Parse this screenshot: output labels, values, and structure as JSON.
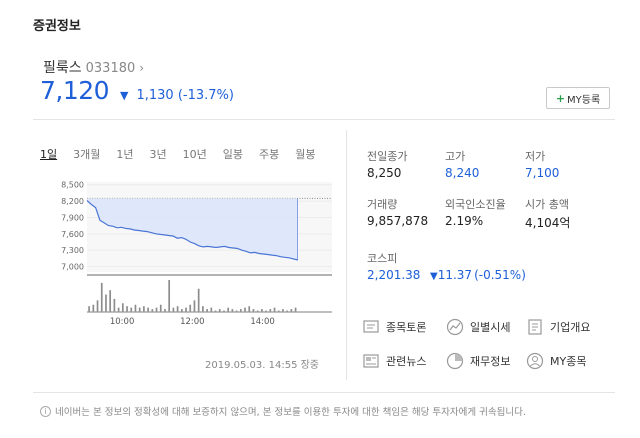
{
  "section_title": "증권정보",
  "stock": {
    "name": "필룩스",
    "code": "033180",
    "price": "7,120",
    "change_abs": "1,130",
    "change_pct": "(-13.7%)",
    "direction": "down",
    "my_button": "MY등록"
  },
  "tabs": [
    {
      "label": "1일",
      "active": true
    },
    {
      "label": "3개월",
      "active": false
    },
    {
      "label": "1년",
      "active": false
    },
    {
      "label": "3년",
      "active": false
    },
    {
      "label": "10년",
      "active": false
    },
    {
      "label": "일봉",
      "active": false
    },
    {
      "label": "주봉",
      "active": false
    },
    {
      "label": "월봉",
      "active": false
    }
  ],
  "chart_data": {
    "type": "line",
    "ylim": [
      6900,
      8550
    ],
    "yticks": [
      "8,500",
      "8,200",
      "7,900",
      "7,600",
      "7,300",
      "7,000"
    ],
    "xticks": [
      "10:00",
      "12:00",
      "14:00"
    ],
    "reference_value": 8250,
    "start_time": "09:00",
    "end_time": "15:30",
    "price_series": [
      8210,
      8140,
      8080,
      7850,
      7800,
      7750,
      7740,
      7710,
      7720,
      7700,
      7690,
      7670,
      7660,
      7650,
      7640,
      7620,
      7600,
      7590,
      7580,
      7570,
      7560,
      7520,
      7530,
      7500,
      7450,
      7420,
      7380,
      7360,
      7370,
      7360,
      7350,
      7360,
      7370,
      7350,
      7340,
      7330,
      7300,
      7280,
      7250,
      7260,
      7240,
      7230,
      7220,
      7210,
      7200,
      7180,
      7170,
      7160,
      7140,
      7120
    ],
    "volume_series": [
      4,
      5,
      8,
      20,
      12,
      15,
      9,
      3,
      6,
      4,
      3,
      5,
      3,
      4,
      3,
      2,
      3,
      5,
      2,
      22,
      3,
      4,
      2,
      3,
      5,
      8,
      16,
      4,
      2,
      3,
      1,
      2,
      1,
      3,
      2,
      1,
      2,
      3,
      4,
      2,
      1,
      2,
      1,
      2,
      3,
      1,
      2,
      1,
      2,
      3
    ],
    "colors": {
      "line": "#4a74d6",
      "fill": "#dce6fa",
      "reference": "#8a8a8a",
      "volume": "#8c8c8c"
    }
  },
  "timestamp": "2019.05.03.  14:55 장중",
  "stats": [
    {
      "label": "전일종가",
      "value": "8,250",
      "blue": false
    },
    {
      "label": "고가",
      "value": "8,240",
      "blue": true
    },
    {
      "label": "저가",
      "value": "7,100",
      "blue": true
    },
    {
      "label": "거래량",
      "value": "9,857,878",
      "blue": false
    },
    {
      "label": "외국인소진율",
      "value": "2.19%",
      "blue": false
    },
    {
      "label": "시가 총액",
      "value": "4,104억",
      "blue": false
    }
  ],
  "kospi": {
    "label": "코스피",
    "value": "2,201.38",
    "change": "11.37",
    "change_pct": "(-0.51%)"
  },
  "links": [
    {
      "label": "종목토론",
      "icon": "discussion-icon"
    },
    {
      "label": "일별시세",
      "icon": "daily-chart-icon"
    },
    {
      "label": "기업개요",
      "icon": "company-doc-icon"
    },
    {
      "label": "관련뉴스",
      "icon": "news-icon"
    },
    {
      "label": "재무정보",
      "icon": "finance-pie-icon"
    },
    {
      "label": "MY종목",
      "icon": "person-icon"
    }
  ],
  "footer_note": "네이버는 본 정보의 정확성에 대해 보증하지 않으며, 본 정보를 이용한 투자에 대한 책임은 해당 투자자에게 귀속됩니다."
}
